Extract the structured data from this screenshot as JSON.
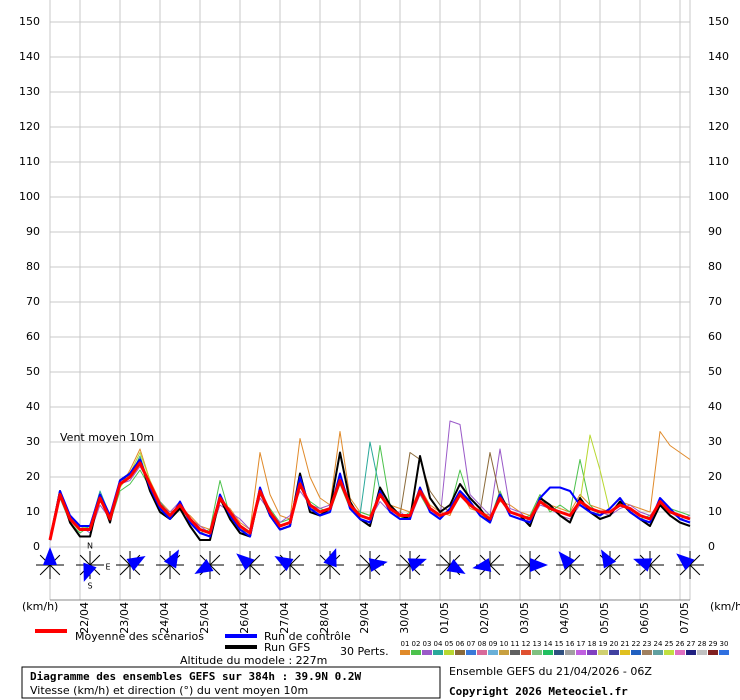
{
  "chart_data": {
    "type": "line",
    "annotation": "Vent moyen 10m",
    "unit_left": "(km/h)",
    "unit_right": "(km/h)",
    "categories": [
      null,
      null,
      null,
      "22/04",
      null,
      null,
      null,
      "23/04",
      null,
      null,
      null,
      "24/04",
      null,
      null,
      null,
      "25/04",
      null,
      null,
      null,
      "26/04",
      null,
      null,
      null,
      "27/04",
      null,
      null,
      null,
      "28/04",
      null,
      null,
      null,
      "29/04",
      null,
      null,
      null,
      "30/04",
      null,
      null,
      null,
      "01/05",
      null,
      null,
      null,
      "02/05",
      null,
      null,
      null,
      "03/05",
      null,
      null,
      null,
      "04/05",
      null,
      null,
      null,
      "05/05",
      null,
      null,
      null,
      "06/05",
      null,
      null,
      null,
      "07/05",
      null
    ],
    "ylim": [
      0,
      150
    ],
    "yticks": [
      0,
      10,
      20,
      30,
      40,
      50,
      60,
      70,
      80,
      90,
      100,
      110,
      120,
      130,
      140,
      150
    ],
    "grid": true,
    "series": [
      {
        "name": "01",
        "color": "#e08a2a",
        "width": 1,
        "values": [
          2,
          15,
          9,
          6,
          5,
          13,
          9,
          17,
          22,
          28,
          19,
          13,
          10,
          11,
          9,
          6,
          5,
          13,
          11,
          7,
          5,
          27,
          15,
          9,
          8,
          31,
          20,
          14,
          12,
          33,
          14,
          10,
          9,
          15,
          12,
          11,
          10,
          17,
          12,
          10,
          9,
          16,
          11,
          10,
          9,
          13,
          12,
          10,
          9,
          14,
          12,
          11,
          10,
          15,
          12,
          11,
          10,
          13,
          12,
          11,
          10,
          33,
          29,
          27,
          25
        ]
      },
      {
        "name": "02",
        "color": "#4cc24c",
        "width": 1,
        "values": [
          2,
          14,
          7,
          4,
          6,
          15,
          7,
          16,
          18,
          22,
          17,
          11,
          8,
          13,
          7,
          4,
          5,
          19,
          9,
          5,
          4,
          15,
          11,
          7,
          8,
          17,
          13,
          11,
          10,
          18,
          11,
          10,
          9,
          29,
          12,
          8,
          10,
          15,
          10,
          8,
          11,
          22,
          13,
          9,
          8,
          16,
          9,
          8,
          9,
          15,
          10,
          12,
          10,
          25,
          12,
          9,
          11,
          14,
          10,
          8,
          9,
          12,
          11,
          10,
          9
        ]
      },
      {
        "name": "03",
        "color": "#9a5ac8",
        "width": 1,
        "values": [
          2,
          14,
          9,
          6,
          4,
          12,
          8,
          18,
          19,
          23,
          18,
          12,
          10,
          13,
          8,
          6,
          4,
          12,
          10,
          8,
          5,
          14,
          10,
          7,
          9,
          16,
          12,
          11,
          12,
          20,
          13,
          9,
          8,
          13,
          10,
          10,
          8,
          15,
          11,
          8,
          36,
          35,
          15,
          12,
          9,
          28,
          11,
          10,
          7,
          12,
          11,
          9,
          8,
          12,
          11,
          10,
          9,
          11,
          12,
          10,
          9,
          12,
          10,
          8,
          9
        ]
      },
      {
        "name": "04",
        "color": "#2aa89a",
        "width": 1,
        "values": [
          2,
          15,
          8,
          5,
          6,
          16,
          9,
          19,
          20,
          26,
          17,
          13,
          9,
          11,
          8,
          5,
          4,
          15,
          9,
          6,
          4,
          15,
          10,
          6,
          7,
          19,
          11,
          10,
          11,
          18,
          12,
          9,
          30,
          16,
          11,
          9,
          9,
          16,
          11,
          9,
          10,
          15,
          12,
          10,
          8,
          14,
          10,
          9,
          8,
          13,
          11,
          10,
          9,
          13,
          11,
          10,
          10,
          12,
          11,
          9,
          8,
          13,
          10,
          9,
          8
        ]
      },
      {
        "name": "05",
        "color": "#b8d830",
        "width": 1,
        "values": [
          2,
          15,
          9,
          6,
          5,
          14,
          7,
          17,
          21,
          27,
          19,
          12,
          9,
          12,
          8,
          5,
          4,
          14,
          10,
          6,
          4,
          16,
          10,
          6,
          7,
          18,
          12,
          10,
          11,
          19,
          12,
          9,
          8,
          15,
          11,
          9,
          9,
          16,
          11,
          9,
          10,
          15,
          12,
          10,
          8,
          14,
          10,
          9,
          8,
          13,
          11,
          10,
          9,
          13,
          32,
          22,
          10,
          12,
          11,
          9,
          8,
          13,
          10,
          9,
          8
        ]
      },
      {
        "name": "06",
        "color": "#8a6a3a",
        "width": 1,
        "values": [
          2,
          16,
          8,
          5,
          5,
          14,
          8,
          18,
          20,
          24,
          18,
          12,
          9,
          12,
          8,
          5,
          4,
          14,
          10,
          6,
          4,
          16,
          10,
          6,
          7,
          18,
          12,
          10,
          11,
          19,
          12,
          9,
          8,
          15,
          11,
          9,
          27,
          25,
          16,
          12,
          10,
          15,
          12,
          10,
          27,
          14,
          10,
          9,
          8,
          13,
          11,
          10,
          9,
          13,
          11,
          10,
          10,
          12,
          11,
          9,
          8,
          13,
          10,
          9,
          8
        ]
      },
      {
        "name": "Run GFS",
        "color": "#000000",
        "width": 2,
        "values": [
          2,
          16,
          7,
          3,
          3,
          15,
          7,
          19,
          21,
          25,
          16,
          10,
          8,
          11,
          6,
          2,
          2,
          14,
          8,
          4,
          3,
          16,
          9,
          5,
          6,
          21,
          10,
          9,
          11,
          27,
          13,
          8,
          6,
          17,
          12,
          9,
          8,
          26,
          14,
          10,
          12,
          18,
          14,
          11,
          7,
          15,
          10,
          9,
          6,
          14,
          12,
          9,
          7,
          14,
          10,
          8,
          9,
          13,
          10,
          8,
          6,
          12,
          9,
          7,
          6
        ]
      },
      {
        "name": "Run de contrôle",
        "color": "#0000ff",
        "width": 2,
        "values": [
          2,
          16,
          9,
          6,
          6,
          15,
          9,
          19,
          21,
          25,
          17,
          11,
          8,
          13,
          7,
          4,
          3,
          15,
          9,
          5,
          3,
          17,
          9,
          5,
          6,
          20,
          11,
          9,
          10,
          21,
          11,
          8,
          7,
          16,
          10,
          8,
          8,
          17,
          10,
          8,
          11,
          16,
          13,
          9,
          7,
          15,
          9,
          8,
          7,
          14,
          17,
          17,
          16,
          12,
          10,
          9,
          11,
          14,
          10,
          8,
          7,
          14,
          11,
          8,
          7
        ]
      },
      {
        "name": "Moyenne des scénarios",
        "color": "#ff0000",
        "width": 3,
        "values": [
          2,
          15,
          8,
          5,
          5,
          14,
          8,
          18,
          20,
          24,
          18,
          12,
          9,
          12,
          8,
          5,
          4,
          14,
          10,
          6,
          4,
          16,
          10,
          6,
          7,
          18,
          12,
          10,
          11,
          19,
          12,
          9,
          8,
          15,
          11,
          9,
          9,
          16,
          11,
          9,
          10,
          15,
          12,
          10,
          8,
          14,
          10,
          9,
          8,
          13,
          11,
          10,
          9,
          13,
          11,
          10,
          10,
          12,
          11,
          9,
          8,
          13,
          10,
          9,
          8
        ]
      }
    ],
    "wind_directions": [
      0,
      200,
      60,
      30,
      240,
      310,
      300,
      20,
      80,
      70,
      120,
      260,
      90,
      320,
      330,
      290,
      310
    ],
    "compass": {
      "n": "N",
      "s": "S",
      "e": "E"
    },
    "perturbations_label": "30 Perts.",
    "perturbation_legend": [
      {
        "name": "01",
        "color": "#e08a2a"
      },
      {
        "name": "02",
        "color": "#4cc24c"
      },
      {
        "name": "03",
        "color": "#9a5ac8"
      },
      {
        "name": "04",
        "color": "#2aa89a"
      },
      {
        "name": "05",
        "color": "#b8d830"
      },
      {
        "name": "06",
        "color": "#8a6a3a"
      },
      {
        "name": "07",
        "color": "#3a7ad8"
      },
      {
        "name": "08",
        "color": "#d86a9a"
      },
      {
        "name": "09",
        "color": "#6ab0d8"
      },
      {
        "name": "10",
        "color": "#c8a040"
      },
      {
        "name": "11",
        "color": "#606060"
      },
      {
        "name": "12",
        "color": "#e05030"
      },
      {
        "name": "13",
        "color": "#80c080"
      },
      {
        "name": "14",
        "color": "#20c060"
      },
      {
        "name": "15",
        "color": "#305080"
      },
      {
        "name": "16",
        "color": "#a0a0a0"
      },
      {
        "name": "17",
        "color": "#c060e0"
      },
      {
        "name": "18",
        "color": "#8040c0"
      },
      {
        "name": "19",
        "color": "#d0d070"
      },
      {
        "name": "20",
        "color": "#4040a0"
      },
      {
        "name": "21",
        "color": "#e0c020"
      },
      {
        "name": "22",
        "color": "#2060c0"
      },
      {
        "name": "23",
        "color": "#a08060"
      },
      {
        "name": "24",
        "color": "#60a0a0"
      },
      {
        "name": "25",
        "color": "#c0e040"
      },
      {
        "name": "26",
        "color": "#e070c0"
      },
      {
        "name": "27",
        "color": "#202080"
      },
      {
        "name": "28",
        "color": "#c0c0c0"
      },
      {
        "name": "29",
        "color": "#802020"
      },
      {
        "name": "30",
        "color": "#3070e0"
      }
    ],
    "altitude": "Altitude du modele : 227m",
    "box_title": "Diagramme des ensembles GEFS sur 384h : 39.9N 0.2W",
    "box_subtitle": "Vitesse (km/h) et direction (°) du vent moyen 10m",
    "run_info": "Ensemble GEFS du 21/04/2026 - 06Z",
    "copyright": "Copyright 2026 Meteociel.fr"
  }
}
